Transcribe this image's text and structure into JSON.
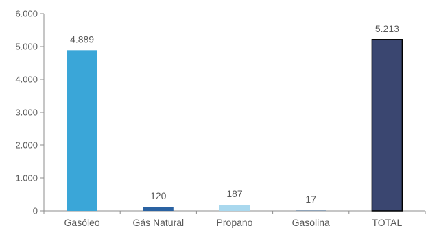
{
  "chart_data": {
    "type": "bar",
    "categories": [
      "Gasóleo",
      "Gás Natural",
      "Propano",
      "Gasolina",
      "TOTAL"
    ],
    "values": [
      4889,
      120,
      187,
      17,
      5213
    ],
    "value_labels": [
      "4.889",
      "120",
      "187",
      "17",
      "5.213"
    ],
    "bar_colors": [
      "#3aa6d8",
      "#2a62a2",
      "#a9d8ee",
      "#8fa3b8",
      "#3a4670"
    ],
    "bar_outline": [
      false,
      false,
      false,
      false,
      true
    ],
    "ylim": [
      0,
      6000
    ],
    "yticks": [
      0,
      1000,
      2000,
      3000,
      4000,
      5000,
      6000
    ],
    "ytick_labels": [
      "0",
      "1.000",
      "2.000",
      "3.000",
      "4.000",
      "5.000",
      "6.000"
    ],
    "title": "",
    "xlabel": "",
    "ylabel": "",
    "grid": false,
    "legend": false
  }
}
